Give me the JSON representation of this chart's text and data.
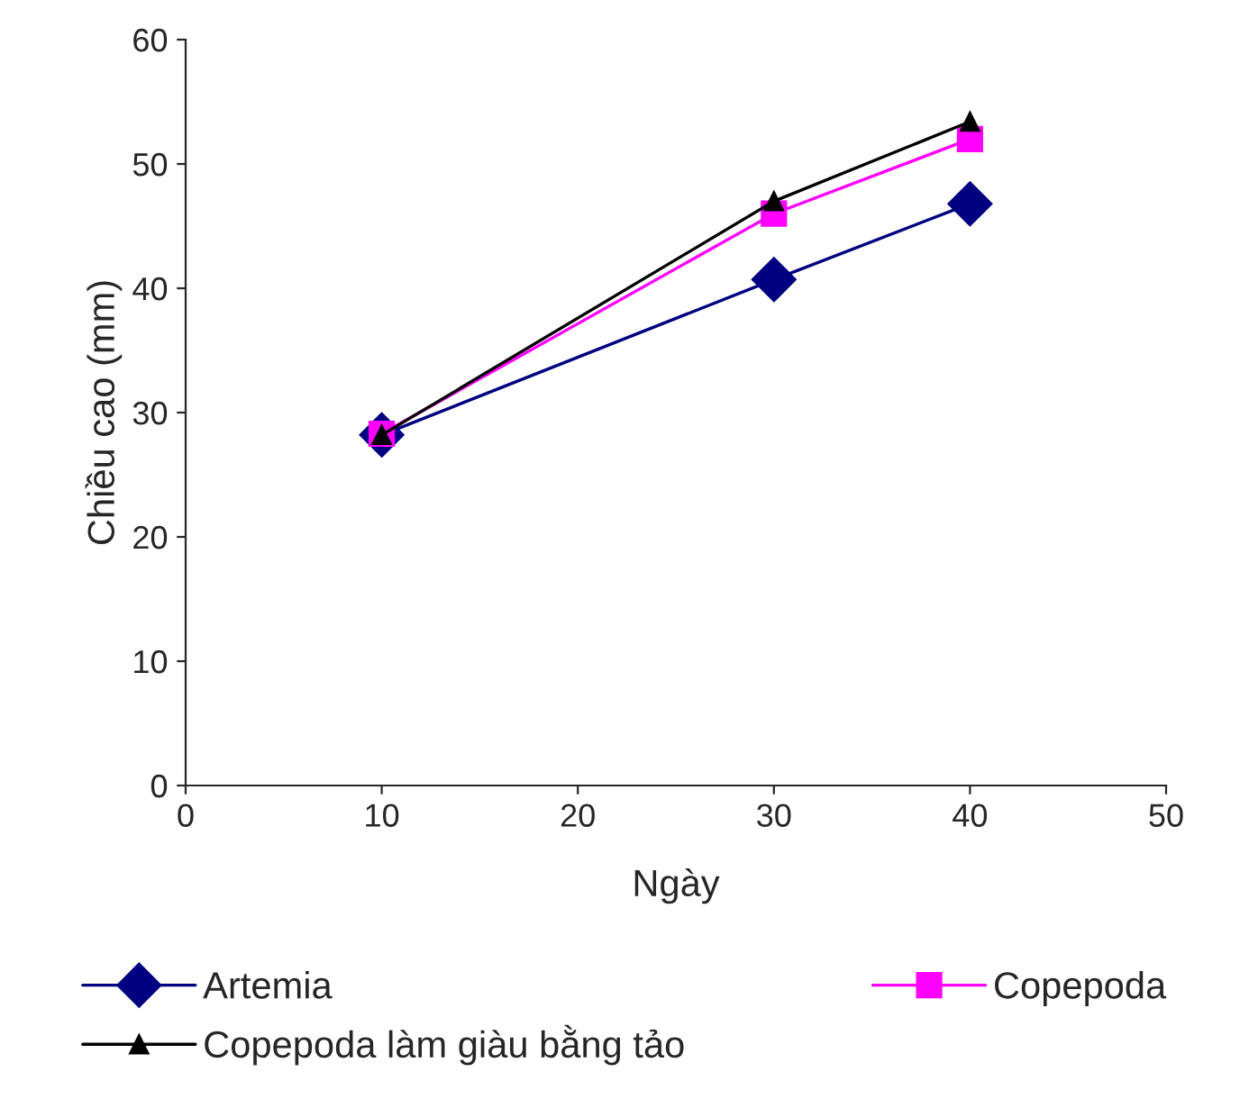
{
  "chart_data": {
    "type": "line",
    "xlabel": "Ngày",
    "ylabel": "Chiều cao (mm)",
    "x": [
      10,
      30,
      40
    ],
    "series": [
      {
        "name": "Artemia",
        "color": "#000080",
        "values": [
          28.2,
          40.7,
          46.8
        ],
        "marker": "diamond"
      },
      {
        "name": "Copepoda",
        "color": "#ff00ff",
        "values": [
          28.3,
          46.0,
          52.0
        ],
        "marker": "square"
      },
      {
        "name": "Copepoda làm giàu bằng tảo",
        "color": "#000000",
        "values": [
          28.2,
          47.0,
          53.4
        ],
        "marker": "triangle"
      }
    ],
    "xlim": [
      0,
      50
    ],
    "xticks": [
      0,
      10,
      20,
      30,
      40,
      50
    ],
    "ylim": [
      0,
      60
    ],
    "yticks": [
      0,
      10,
      20,
      30,
      40,
      50,
      60
    ],
    "grid": false,
    "legend": "bottom",
    "line_style": "solid"
  }
}
